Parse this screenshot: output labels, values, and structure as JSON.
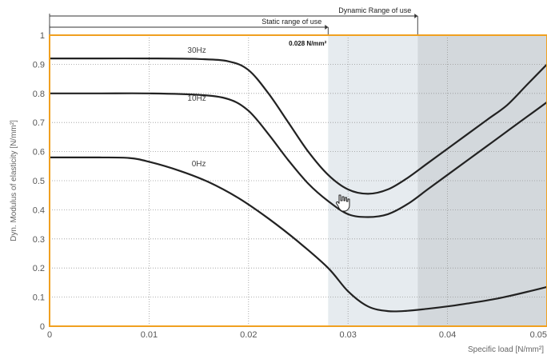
{
  "chart_data": {
    "type": "line",
    "xlabel": "Specific load [N/mm²]",
    "ylabel": "Dyn. Modulus of elasticity [N/mm²]",
    "xlim": [
      0,
      0.05
    ],
    "ylim": [
      0,
      1
    ],
    "x_ticks": [
      "0",
      "0.01",
      "0.02",
      "0.03",
      "0.04",
      "0.05"
    ],
    "y_ticks": [
      "0",
      "0.1",
      "0.2",
      "0.3",
      "0.4",
      "0.5",
      "0.6",
      "0.7",
      "0.8",
      "0.9",
      "1"
    ],
    "grid": true,
    "colors": {
      "frame": "#f0a020",
      "line": "#222222",
      "static_band": "#e6ebef",
      "dynamic_band": "#d3d8dc",
      "grid": "#999999"
    },
    "series": [
      {
        "name": "30Hz",
        "x": [
          0,
          0.005,
          0.01,
          0.015,
          0.018,
          0.02,
          0.022,
          0.024,
          0.026,
          0.028,
          0.03,
          0.032,
          0.034,
          0.036,
          0.038,
          0.04,
          0.042,
          0.044,
          0.046,
          0.048,
          0.05
        ],
        "y": [
          0.92,
          0.92,
          0.92,
          0.918,
          0.91,
          0.88,
          0.8,
          0.7,
          0.6,
          0.52,
          0.47,
          0.455,
          0.47,
          0.51,
          0.56,
          0.61,
          0.66,
          0.71,
          0.76,
          0.83,
          0.9
        ]
      },
      {
        "name": "10Hz",
        "x": [
          0,
          0.005,
          0.01,
          0.015,
          0.018,
          0.02,
          0.022,
          0.024,
          0.026,
          0.028,
          0.03,
          0.032,
          0.034,
          0.036,
          0.038,
          0.04,
          0.042,
          0.044,
          0.046,
          0.048,
          0.05
        ],
        "y": [
          0.8,
          0.8,
          0.8,
          0.795,
          0.78,
          0.74,
          0.66,
          0.57,
          0.49,
          0.43,
          0.385,
          0.375,
          0.385,
          0.42,
          0.47,
          0.52,
          0.57,
          0.62,
          0.67,
          0.72,
          0.77
        ]
      },
      {
        "name": "0Hz",
        "x": [
          0,
          0.005,
          0.008,
          0.01,
          0.013,
          0.016,
          0.019,
          0.022,
          0.025,
          0.028,
          0.03,
          0.032,
          0.034,
          0.036,
          0.038,
          0.04,
          0.042,
          0.045,
          0.048,
          0.05
        ],
        "y": [
          0.58,
          0.58,
          0.578,
          0.565,
          0.535,
          0.495,
          0.44,
          0.37,
          0.29,
          0.2,
          0.12,
          0.068,
          0.052,
          0.053,
          0.06,
          0.068,
          0.078,
          0.095,
          0.118,
          0.135
        ]
      }
    ],
    "ranges": [
      {
        "label": "Static range of use",
        "from": 0,
        "to": 0.028
      },
      {
        "label": "Dynamic Range of use",
        "from": 0,
        "to": 0.037
      }
    ],
    "annotations": [
      {
        "text": "0.028 N/mm²",
        "x": 0.028,
        "y": 0.98
      }
    ]
  }
}
